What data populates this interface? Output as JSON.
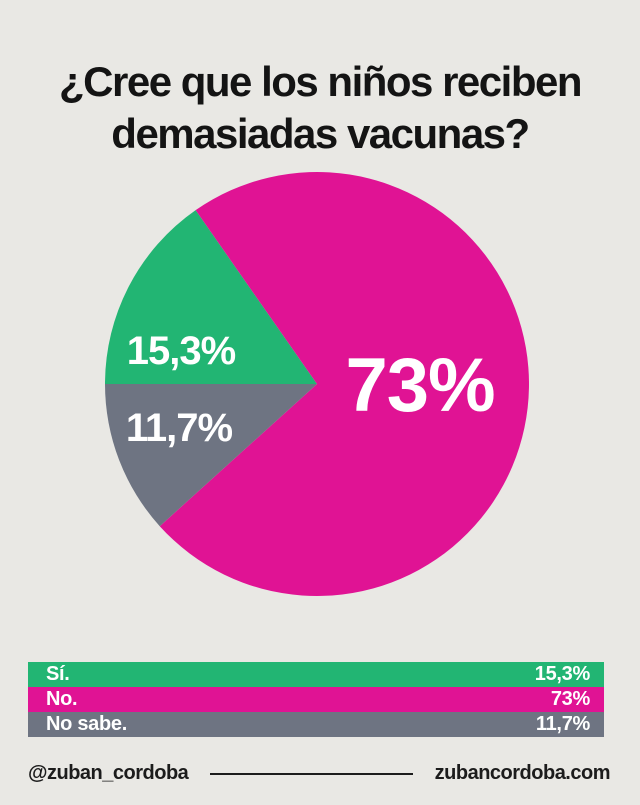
{
  "title": {
    "line1": "¿Cree que los niños reciben",
    "line2": "demasiadas vacunas?"
  },
  "chart_data": {
    "type": "pie",
    "title": "¿Cree que los niños reciben demasiadas vacunas?",
    "start_angle_deg": 270,
    "direction": "clockwise",
    "legend_position": "bottom",
    "slices": [
      {
        "label": "Sí.",
        "value": 15.3,
        "display": "15,3%",
        "color": "#22b573"
      },
      {
        "label": "No.",
        "value": 73.0,
        "display": "73%",
        "color": "#e01394"
      },
      {
        "label": "No sabe.",
        "value": 11.7,
        "display": "11,7%",
        "color": "#6e7482"
      }
    ]
  },
  "legend": {
    "rows": [
      {
        "label": "Sí.",
        "value": "15,3%",
        "color": "#22b573"
      },
      {
        "label": "No.",
        "value": "73%",
        "color": "#e01394"
      },
      {
        "label": "No sabe.",
        "value": "11,7%",
        "color": "#6e7482"
      }
    ]
  },
  "footer": {
    "handle": "@zuban_cordoba",
    "website": "zubancordoba.com"
  },
  "colors": {
    "background": "#e9e8e4",
    "title_text": "#141414",
    "slice_label_text": "#ffffff"
  }
}
